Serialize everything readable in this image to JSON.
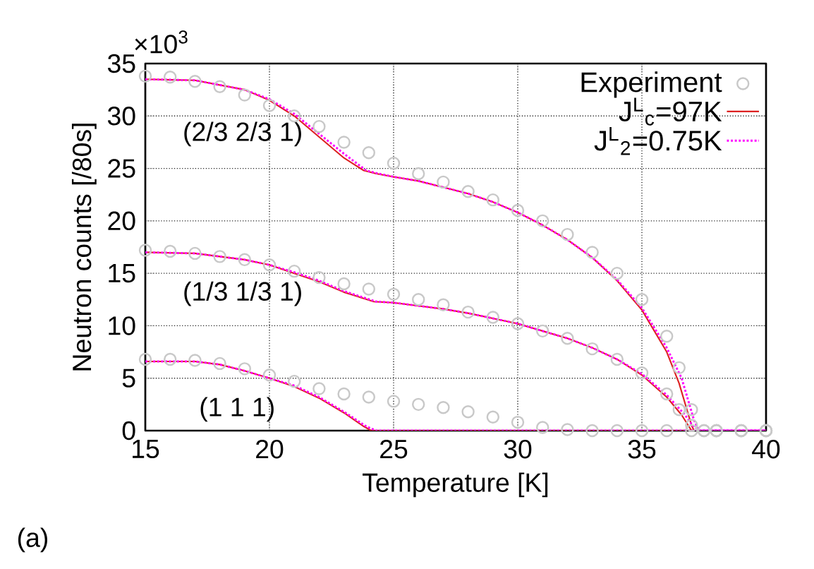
{
  "chart_data": {
    "type": "line",
    "xlabel": "Temperature [K]",
    "ylabel": "Neutron counts [/80s]",
    "xlim": [
      15,
      40
    ],
    "xticks": [
      15,
      20,
      25,
      30,
      35,
      40
    ],
    "ylim": [
      0,
      35
    ],
    "yticks": [
      0,
      5,
      10,
      15,
      20,
      25,
      30,
      35
    ],
    "grid": true,
    "legend": "top right",
    "annotations": [
      "×10$^{3}$",
      "(a)",
      "(2/3 2/3 1)",
      "(1/3 1/3 1)",
      "(1 1 1)"
    ],
    "series": [
      {
        "name": "Experiment",
        "type": "scatter",
        "marker": "circle",
        "color": "#c8c8c8",
        "x": [
          15,
          16,
          17,
          18,
          19,
          20,
          21,
          22,
          23,
          24,
          25,
          26,
          27,
          28,
          29,
          30,
          31,
          32,
          33,
          34,
          35,
          36,
          36.5,
          37,
          37.5,
          38,
          39,
          40,
          15,
          16,
          17,
          18,
          19,
          20,
          21,
          22,
          23,
          24,
          25,
          26,
          27,
          28,
          29,
          30,
          31,
          32,
          33,
          34,
          35,
          36,
          36.5,
          37,
          37.5,
          38,
          39,
          40,
          15,
          16,
          17,
          18,
          19,
          20,
          21,
          22,
          23,
          24,
          25,
          26,
          27,
          28,
          29,
          30,
          31,
          32,
          33,
          34,
          35,
          36,
          37,
          38,
          39,
          40
        ],
        "values": [
          33.8,
          33.7,
          33.3,
          32.8,
          32,
          31,
          30,
          29,
          27.5,
          26.5,
          25.5,
          24.5,
          23.7,
          22.8,
          22,
          21,
          20,
          18.7,
          17,
          15,
          12.5,
          9,
          6,
          2,
          0,
          0,
          0,
          0,
          17.2,
          17.1,
          16.9,
          16.6,
          16.3,
          15.8,
          15.2,
          14.6,
          14,
          13.5,
          13,
          12.5,
          12,
          11.3,
          10.8,
          10.2,
          9.5,
          8.8,
          7.8,
          6.8,
          5.5,
          3.5,
          2,
          0.5,
          0,
          0,
          0,
          0,
          6.8,
          6.8,
          6.7,
          6.4,
          5.9,
          5.3,
          4.7,
          4,
          3.5,
          3.2,
          2.8,
          2.5,
          2.2,
          1.8,
          1.3,
          0.8,
          0.3,
          0.1,
          0,
          0,
          0,
          0,
          0,
          0,
          0,
          0
        ]
      },
      {
        "name": "J$^{L}$$_{c}$=97K",
        "marker": "none",
        "line_style": "solid",
        "color": "#dd2222",
        "x": [
          15,
          17,
          19,
          20,
          21,
          22,
          23,
          23.8,
          24.3,
          25,
          26,
          27,
          28,
          29,
          30,
          31,
          32,
          33,
          34,
          35,
          36,
          36.5,
          37,
          37.1,
          40
        ],
        "values": [
          33.5,
          33.4,
          32.5,
          31.5,
          30,
          28,
          26,
          24.8,
          24.5,
          24.2,
          23.8,
          23.2,
          22.6,
          21.8,
          20.8,
          19.6,
          18.2,
          16.5,
          14.3,
          11.5,
          7.5,
          4.5,
          0.5,
          0,
          0
        ]
      },
      {
        "type": "line",
        "marker": "none",
        "line_style": "solid",
        "color": "#dd2222",
        "x": [
          15,
          17,
          19,
          20,
          21,
          22,
          23,
          24.2,
          25,
          26,
          27,
          28,
          29,
          30,
          31,
          32,
          33,
          34,
          35,
          36,
          36.6,
          37,
          40
        ],
        "values": [
          17,
          16.9,
          16.3,
          15.8,
          15,
          14.2,
          13.2,
          12.3,
          12.2,
          11.9,
          11.6,
          11.2,
          10.7,
          10.2,
          9.5,
          8.8,
          7.9,
          6.8,
          5.3,
          3.2,
          1.5,
          0,
          0
        ]
      },
      {
        "type": "line",
        "marker": "none",
        "line_style": "solid",
        "color": "#dd2222",
        "x": [
          15,
          17,
          18,
          19,
          20,
          21,
          22,
          23,
          23.8,
          24.1,
          40
        ],
        "values": [
          6.6,
          6.6,
          6.3,
          5.7,
          5,
          4.2,
          3.1,
          1.7,
          0.4,
          0,
          0
        ]
      },
      {
        "name": "J$^{L}$$_{2}$=0.75K",
        "marker": "none",
        "line_style": "dotted",
        "color": "#ff00ff",
        "x": [
          15,
          17,
          19,
          20,
          21,
          22,
          23,
          23.9,
          24.4,
          25,
          26,
          27,
          28,
          29,
          30,
          31,
          32,
          33,
          34,
          35,
          36,
          36.6,
          37.1,
          37.3,
          40
        ],
        "values": [
          33.5,
          33.4,
          32.5,
          31.6,
          30.2,
          28.3,
          26.4,
          24.8,
          24.5,
          24.2,
          23.8,
          23.2,
          22.6,
          21.8,
          20.8,
          19.6,
          18.2,
          16.5,
          14.4,
          11.7,
          7.9,
          5,
          1,
          0,
          0
        ]
      },
      {
        "type": "line",
        "marker": "none",
        "line_style": "dotted",
        "color": "#ff00ff",
        "x": [
          15,
          17,
          19,
          20,
          21,
          22,
          23,
          24.3,
          25,
          26,
          27,
          28,
          29,
          30,
          31,
          32,
          33,
          34,
          35,
          36,
          36.7,
          37.2,
          40
        ],
        "values": [
          17,
          16.9,
          16.3,
          15.8,
          15.1,
          14.3,
          13.3,
          12.3,
          12.2,
          11.9,
          11.6,
          11.2,
          10.7,
          10.2,
          9.5,
          8.8,
          7.9,
          6.8,
          5.4,
          3.4,
          1.6,
          0,
          0
        ]
      },
      {
        "type": "line",
        "marker": "none",
        "line_style": "dotted",
        "color": "#ff00ff",
        "x": [
          15,
          17,
          18,
          19,
          20,
          21,
          22,
          23,
          23.9,
          24.3,
          40
        ],
        "values": [
          6.6,
          6.6,
          6.3,
          5.7,
          5,
          4.3,
          3.2,
          1.8,
          0.4,
          0,
          0
        ]
      }
    ]
  }
}
